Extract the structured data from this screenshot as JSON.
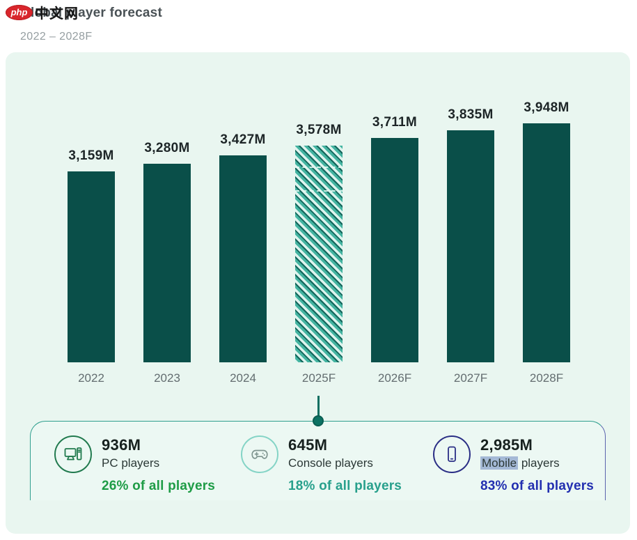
{
  "watermark": {
    "logo_text": "php",
    "site_text": "中文网"
  },
  "header": {
    "title": "Global player forecast",
    "subtitle": "2022 – 2028F"
  },
  "chart_data": {
    "type": "bar",
    "title": "Global player forecast",
    "subtitle": "2022 – 2028F",
    "unit": "millions of players",
    "categories": [
      "2022",
      "2023",
      "2024",
      "2025F",
      "2026F",
      "2027F",
      "2028F"
    ],
    "values": [
      3159,
      3280,
      3427,
      3578,
      3711,
      3835,
      3948
    ],
    "labels": [
      "3,159M",
      "3,280M",
      "3,427M",
      "3,578M",
      "3,711M",
      "3,835M",
      "3,948M"
    ],
    "hatched_index": 3,
    "hatched_category": "2025F",
    "bar_color": "#0a4f49",
    "hatch_colors": [
      "#def4ee",
      "#44b4a1",
      "#14655b"
    ],
    "ylim": [
      0,
      4100
    ],
    "grid": false,
    "value_labels_position": "above-bars"
  },
  "callout": {
    "items": [
      {
        "icon": "pc-icon",
        "value": "936M",
        "label": "PC players",
        "share": "26% of all players",
        "share_color": "#1e9c46",
        "ring_color": "#217a4e"
      },
      {
        "icon": "console-icon",
        "value": "645M",
        "label": "Console players",
        "share": "18% of all players",
        "share_color": "#28a08c",
        "ring_color": "#84d4c6"
      },
      {
        "icon": "mobile-icon",
        "value": "2,985M",
        "label_highlight": "Mobile",
        "label_rest": " players",
        "share": "83% of all players",
        "share_color": "#222fb0",
        "ring_color": "#2a2e85"
      }
    ]
  }
}
